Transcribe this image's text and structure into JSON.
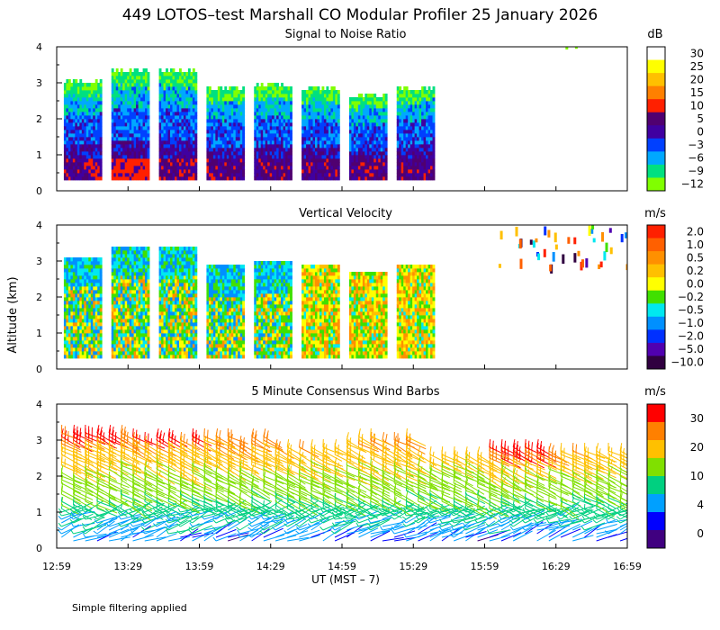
{
  "figure": {
    "title": "449 LOTOS–test Marshall CO Modular Profiler 25 January 2026",
    "ylabel": "Altitude (km)",
    "xlabel": "UT  (MST – 7)",
    "footnote": "Simple filtering applied"
  },
  "chart_data": [
    {
      "type": "heatmap",
      "title": "Signal to Noise Ratio",
      "unit": "dB",
      "x_range": [
        "12:59",
        "16:59"
      ],
      "xticks": [
        "12:59",
        "13:29",
        "13:59",
        "14:29",
        "14:59",
        "15:29",
        "15:59",
        "16:29",
        "16:59"
      ],
      "ylim": [
        0,
        4
      ],
      "yticks": [
        "0",
        "1",
        "2",
        "3",
        "4"
      ],
      "colorbar_labels": [
        "30",
        "25",
        "20",
        "15",
        "10",
        "5",
        "0",
        "−3",
        "−6",
        "−9",
        "−12"
      ],
      "colors": [
        "#ffffff",
        "#ffff00",
        "#ffc000",
        "#ff8000",
        "#ff2000",
        "#500070",
        "#4000a0",
        "#0040ff",
        "#00a8ff",
        "#00e080",
        "#80ff00"
      ],
      "blocks": [
        {
          "start": "13:02",
          "end": "13:18",
          "top_km": 3.0
        },
        {
          "start": "13:22",
          "end": "13:38",
          "top_km": 3.3
        },
        {
          "start": "13:42",
          "end": "13:58",
          "top_km": 3.3
        },
        {
          "start": "14:02",
          "end": "14:18",
          "top_km": 2.8
        },
        {
          "start": "14:22",
          "end": "14:38",
          "top_km": 2.9
        },
        {
          "start": "14:42",
          "end": "14:58",
          "top_km": 2.8
        },
        {
          "start": "15:02",
          "end": "15:18",
          "top_km": 2.6
        },
        {
          "start": "15:22",
          "end": "15:38",
          "top_km": 2.8
        }
      ]
    },
    {
      "type": "heatmap",
      "title": "Vertical Velocity",
      "unit": "m/s",
      "x_range": [
        "12:59",
        "16:59"
      ],
      "xticks": [
        "12:59",
        "13:29",
        "13:59",
        "14:29",
        "14:59",
        "15:29",
        "15:59",
        "16:29",
        "16:59"
      ],
      "ylim": [
        0,
        4
      ],
      "yticks": [
        "0",
        "1",
        "2",
        "3",
        "4"
      ],
      "colorbar_labels": [
        "2.0",
        "1.0",
        "0.5",
        "0.2",
        "0.0",
        "−0.2",
        "−0.5",
        "−1.0",
        "−2.0",
        "−5.0",
        "−10.0"
      ],
      "colors": [
        "#ff2000",
        "#ff6000",
        "#ff9000",
        "#ffc000",
        "#ffff00",
        "#40e000",
        "#00e8f0",
        "#0090ff",
        "#0030ff",
        "#5000b0",
        "#300040"
      ]
    },
    {
      "type": "wind_barbs",
      "title": "5 Minute Consensus Wind Barbs",
      "unit": "m/s",
      "x_range": [
        "12:59",
        "16:59"
      ],
      "xticks": [
        "12:59",
        "13:29",
        "13:59",
        "14:29",
        "14:59",
        "15:29",
        "15:59",
        "16:29",
        "16:59"
      ],
      "ylim": [
        0,
        4
      ],
      "yticks": [
        "0",
        "1",
        "2",
        "3",
        "4"
      ],
      "colorbar_labels": [
        "30",
        "20",
        "10",
        "4",
        "0"
      ],
      "colors": [
        "#ff0000",
        "#ff8000",
        "#ffc000",
        "#80e000",
        "#00d080",
        "#00a0ff",
        "#0000ff",
        "#400080"
      ]
    }
  ]
}
